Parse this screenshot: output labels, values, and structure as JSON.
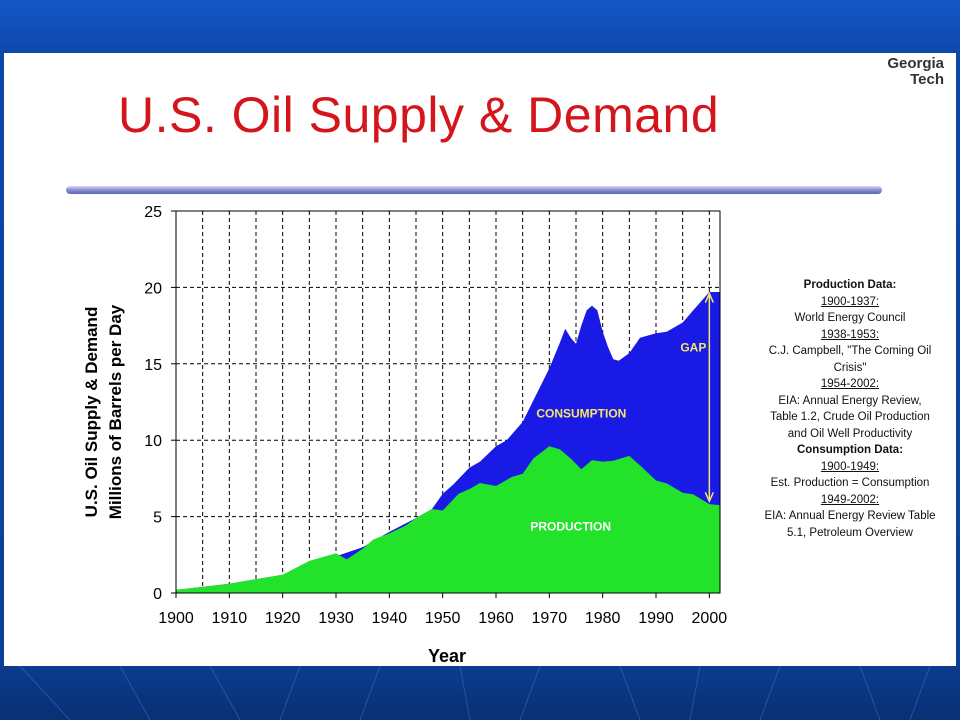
{
  "slide": {
    "title": "U.S. Oil Supply & Demand",
    "logo_line1": "Georgia",
    "logo_line2": "Tech"
  },
  "colors": {
    "consumption": "#1a1ae6",
    "production": "#22e22a",
    "gap_label": "#f5e66a",
    "title": "#d4161c"
  },
  "chart_data": {
    "type": "area",
    "title": "",
    "xlabel": "Year",
    "ylabel": "U.S. Oil Supply & Demand Millions of Barrels per Day",
    "ylabel_line1": "U.S. Oil Supply & Demand",
    "ylabel_line2": "Millions of Barrels per Day",
    "xlim": [
      1900,
      2002
    ],
    "ylim": [
      0,
      25
    ],
    "x_ticks": [
      1900,
      1910,
      1920,
      1930,
      1940,
      1950,
      1960,
      1970,
      1980,
      1990,
      2000
    ],
    "y_ticks": [
      0,
      5,
      10,
      15,
      20,
      25
    ],
    "grid": true,
    "series": [
      {
        "name": "CONSUMPTION",
        "x": [
          1900,
          1905,
          1910,
          1915,
          1920,
          1925,
          1930,
          1935,
          1940,
          1945,
          1948,
          1950,
          1952,
          1955,
          1957,
          1960,
          1962,
          1965,
          1967,
          1970,
          1972,
          1973,
          1974,
          1975,
          1976,
          1977,
          1978,
          1979,
          1980,
          1981,
          1982,
          1983,
          1985,
          1987,
          1990,
          1992,
          1995,
          1997,
          2000,
          2002
        ],
        "values": [
          0.2,
          0.4,
          0.6,
          0.9,
          1.2,
          2.0,
          2.4,
          3.0,
          4.0,
          4.9,
          5.5,
          6.5,
          7.1,
          8.2,
          8.6,
          9.6,
          10.0,
          11.2,
          12.6,
          14.7,
          16.4,
          17.3,
          16.7,
          16.3,
          17.5,
          18.5,
          18.8,
          18.5,
          17.1,
          16.1,
          15.3,
          15.2,
          15.7,
          16.7,
          17.0,
          17.1,
          17.7,
          18.5,
          19.7,
          19.7
        ]
      },
      {
        "name": "PRODUCTION",
        "x": [
          1900,
          1905,
          1910,
          1915,
          1920,
          1925,
          1930,
          1932,
          1935,
          1937,
          1940,
          1943,
          1945,
          1948,
          1950,
          1953,
          1955,
          1957,
          1960,
          1963,
          1965,
          1967,
          1970,
          1972,
          1974,
          1976,
          1978,
          1980,
          1982,
          1985,
          1987,
          1990,
          1992,
          1995,
          1997,
          2000,
          2002
        ],
        "values": [
          0.2,
          0.4,
          0.6,
          0.9,
          1.2,
          2.1,
          2.6,
          2.2,
          2.9,
          3.5,
          3.9,
          4.4,
          4.9,
          5.5,
          5.4,
          6.5,
          6.8,
          7.2,
          7.0,
          7.6,
          7.8,
          8.8,
          9.6,
          9.4,
          8.8,
          8.1,
          8.7,
          8.6,
          8.65,
          8.97,
          8.35,
          7.36,
          7.17,
          6.56,
          6.45,
          5.82,
          5.75
        ]
      }
    ],
    "annotations": [
      {
        "text": "GAP",
        "x": 1997,
        "y": 15.8
      },
      {
        "text": "CONSUMPTION",
        "x": 1976,
        "y": 11.5
      },
      {
        "text": "PRODUCTION",
        "x": 1974,
        "y": 4.1
      }
    ],
    "gap_arrow": {
      "x": 2000,
      "y_from": 6.0,
      "y_to": 19.6
    }
  },
  "sources": [
    {
      "style": "hd",
      "text": "Production Data:"
    },
    {
      "style": "ul",
      "text": "1900-1937:"
    },
    {
      "style": "tx",
      "text": "World Energy Council"
    },
    {
      "style": "ul",
      "text": "1938-1953:"
    },
    {
      "style": "tx",
      "text": "C.J. Campbell, \"The Coming Oil"
    },
    {
      "style": "tx",
      "text": "Crisis\""
    },
    {
      "style": "ul",
      "text": "1954-2002:"
    },
    {
      "style": "tx",
      "text": "EIA: Annual Energy Review,"
    },
    {
      "style": "tx",
      "text": "Table 1.2, Crude Oil Production"
    },
    {
      "style": "tx",
      "text": "and Oil Well Productivity"
    },
    {
      "style": "hd",
      "text": "Consumption Data:"
    },
    {
      "style": "ul",
      "text": "1900-1949:"
    },
    {
      "style": "tx",
      "text": "Est. Production = Consumption"
    },
    {
      "style": "ul",
      "text": "1949-2002:"
    },
    {
      "style": "tx",
      "text": "EIA: Annual Energy Review Table"
    },
    {
      "style": "tx",
      "text": "5.1, Petroleum Overview"
    }
  ]
}
